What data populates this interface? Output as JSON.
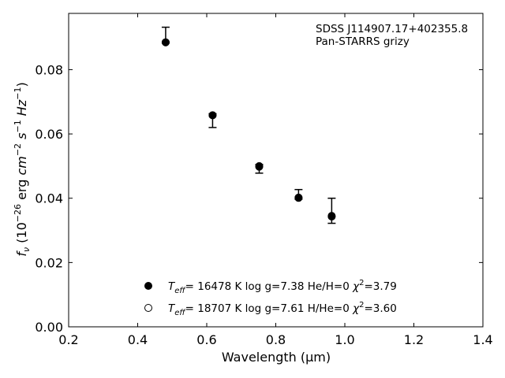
{
  "chart_data": {
    "type": "scatter",
    "xlabel": "Wavelength (μm)",
    "ylabel": "f_ν (10^-26 erg cm^-2 s^-1 Hz^-1)",
    "xlim": [
      0.2,
      1.4
    ],
    "ylim": [
      0.0,
      0.0975
    ],
    "xticks": [
      "0.2",
      "0.4",
      "0.6",
      "0.8",
      "1.0",
      "1.2",
      "1.4"
    ],
    "yticks": [
      "0.00",
      "0.02",
      "0.04",
      "0.06",
      "0.08"
    ],
    "annotations": [
      "SDSS J114907.17+402355.8",
      "Pan-STARRS grizy"
    ],
    "grid": false,
    "legend_position": "bottom-center",
    "series": [
      {
        "name": "Teff= 16478 K log g=7.38 He/H=0 χ²=3.79",
        "marker": "filled-circle",
        "x": [
          0.481,
          0.617,
          0.752,
          0.866,
          0.962
        ],
        "y": [
          0.0885,
          0.0658,
          0.0498,
          0.0401,
          0.0345
        ]
      },
      {
        "name": "Teff= 18707 K log g=7.61 H/He=0 χ²=3.60",
        "marker": "open-circle",
        "x": [
          0.481,
          0.617,
          0.752,
          0.866,
          0.962
        ],
        "y": [
          0.0885,
          0.0658,
          0.05,
          0.0402,
          0.0343
        ]
      },
      {
        "name": "Pan-STARRS grizy",
        "marker": "errorbar",
        "x": [
          0.481,
          0.617,
          0.752,
          0.866,
          0.962
        ],
        "y": [
          0.0885,
          0.0658,
          0.05,
          0.04,
          0.0345
        ],
        "y_low": [
          0.0883,
          0.062,
          0.0478,
          0.0397,
          0.0322
        ],
        "y_high": [
          0.0932,
          0.0663,
          0.0505,
          0.0427,
          0.04
        ]
      }
    ],
    "legend": [
      {
        "marker": "filled",
        "teff_sym": "T",
        "teff_sub": "eff",
        "teff": "= 16478 K",
        "logg": "log g=7.38",
        "comp": "He/H=0",
        "chi": "=3.79"
      },
      {
        "marker": "open",
        "teff_sym": "T",
        "teff_sub": "eff",
        "teff": "= 18707 K",
        "logg": "log g=7.61",
        "comp": "H/He=0",
        "chi": "=3.60"
      }
    ]
  }
}
